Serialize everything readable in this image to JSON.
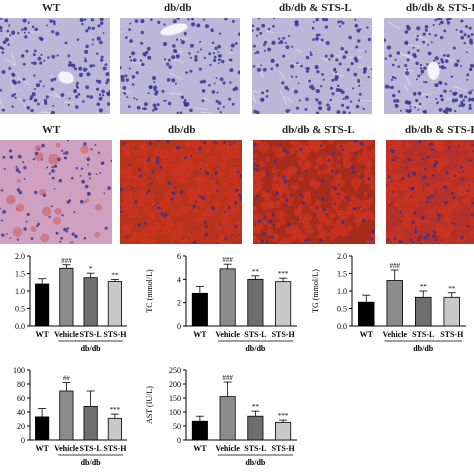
{
  "he_row": {
    "labels": [
      "WT",
      "db/db",
      "db/db & STS-L",
      "db/db & STS-H"
    ]
  },
  "oil_row": {
    "labels": [
      "WT",
      "db/db",
      "db/db & STS-L",
      "db/db & STS-H"
    ]
  },
  "colors": {
    "he_background": "#bcb6d8",
    "he_nuclei": "#3c3190",
    "oil_wt_background": "#cfa0c0",
    "oil_lipid": "#c9331f",
    "wt_bar": "#000000",
    "vehicle_bar": "#8c8c8c",
    "sts_l_bar": "#6e6e6e",
    "sts_h_bar": "#c8c8c8"
  },
  "chart_data": [
    {
      "type": "bar",
      "ylabel": "",
      "ylim": [
        0.0,
        2.0
      ],
      "yticks": [
        "0.0",
        "0.5",
        "1.0",
        "1.5",
        "2.0"
      ],
      "categories": [
        "WT",
        "Vehicle",
        "STS-L",
        "STS-H"
      ],
      "group_label": "db/db",
      "values": [
        1.2,
        1.65,
        1.38,
        1.27
      ],
      "errors": [
        0.15,
        0.1,
        0.13,
        0.06
      ],
      "significance": [
        "",
        "###",
        "*",
        "**"
      ]
    },
    {
      "type": "bar",
      "ylabel": "TC (mmol/L)",
      "ylim": [
        0,
        6
      ],
      "yticks": [
        "0",
        "2",
        "4",
        "6"
      ],
      "categories": [
        "WT",
        "Vehicle",
        "STS-L",
        "STS-H"
      ],
      "group_label": "db/db",
      "values": [
        2.8,
        4.9,
        4.0,
        3.8
      ],
      "errors": [
        0.6,
        0.4,
        0.3,
        0.3
      ],
      "significance": [
        "",
        "###",
        "**",
        "***"
      ]
    },
    {
      "type": "bar",
      "ylabel": "TG (mmol/L)",
      "ylim": [
        0.0,
        2.0
      ],
      "yticks": [
        "0.0",
        "0.5",
        "1.0",
        "1.5",
        "2.0"
      ],
      "categories": [
        "WT",
        "Vehicle",
        "STS-L",
        "STS-H"
      ],
      "group_label": "db/db",
      "values": [
        0.68,
        1.3,
        0.82,
        0.82
      ],
      "errors": [
        0.2,
        0.3,
        0.18,
        0.13
      ],
      "significance": [
        "",
        "###",
        "**",
        "**"
      ]
    },
    {
      "type": "bar",
      "ylabel": "",
      "ylim": [
        0,
        100
      ],
      "yticks": [
        "0",
        "20",
        "40",
        "60",
        "80",
        "100"
      ],
      "categories": [
        "WT",
        "Vehicle",
        "STS-L",
        "STS-H"
      ],
      "group_label": "db/db",
      "values": [
        33,
        70,
        48,
        31
      ],
      "errors": [
        12,
        12,
        22,
        6
      ],
      "significance": [
        "",
        "##",
        "",
        "***"
      ]
    },
    {
      "type": "bar",
      "ylabel": "AST (IU/L)",
      "ylim": [
        0,
        250
      ],
      "yticks": [
        "0",
        "50",
        "100",
        "150",
        "200",
        "250"
      ],
      "categories": [
        "WT",
        "Vehicle",
        "STS-L",
        "STS-H"
      ],
      "group_label": "db/db",
      "values": [
        67,
        155,
        85,
        63
      ],
      "errors": [
        18,
        52,
        18,
        8
      ],
      "significance": [
        "",
        "###",
        "**",
        "***"
      ]
    }
  ]
}
